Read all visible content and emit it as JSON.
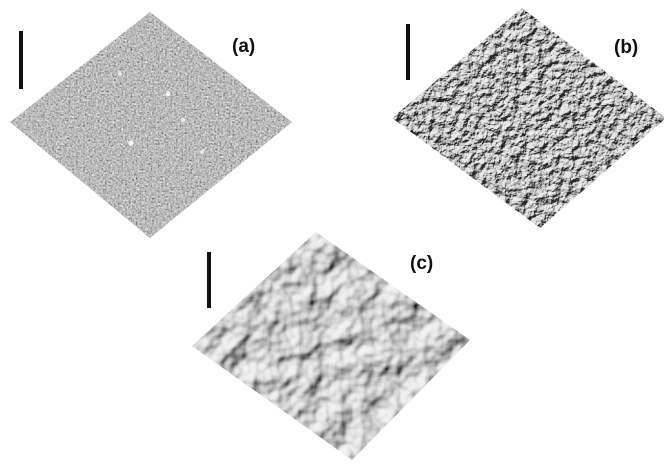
{
  "figure": {
    "panels": [
      {
        "id": "a",
        "label": "(a)",
        "roughness": "fine"
      },
      {
        "id": "b",
        "label": "(b)",
        "roughness": "medium"
      },
      {
        "id": "c",
        "label": "(c)",
        "roughness": "coarse"
      }
    ]
  },
  "colors": {
    "background": "#ffffff",
    "scale_bar": "#111111",
    "label": "#111111"
  }
}
